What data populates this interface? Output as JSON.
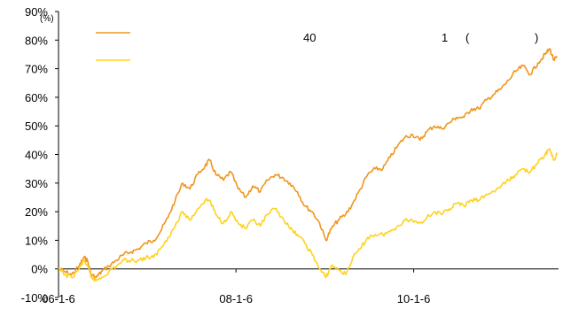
{
  "chart_data": {
    "type": "line",
    "ylim": [
      -10,
      90
    ],
    "y_unit": "(%)",
    "y_ticks": [
      "-10%",
      "0%",
      "10%",
      "20%",
      "30%",
      "40%",
      "50%",
      "60%",
      "70%",
      "80%",
      "90%"
    ],
    "x_ticks": [
      "06-1-6",
      "08-1-6",
      "10-1-6"
    ],
    "legend_fragments": [
      "40",
      "1",
      "(",
      ")"
    ],
    "grid": false,
    "legend_position": "top-left",
    "series": [
      {
        "color": "#F0961E",
        "points": [
          [
            "2006-01-06",
            0
          ],
          [
            "2006-02-01",
            -1
          ],
          [
            "2006-03-01",
            -2
          ],
          [
            "2006-04-01",
            1
          ],
          [
            "2006-04-20",
            4
          ],
          [
            "2006-05-05",
            3
          ],
          [
            "2006-05-20",
            -2
          ],
          [
            "2006-06-10",
            -3
          ],
          [
            "2006-07-01",
            -1
          ],
          [
            "2006-08-01",
            1
          ],
          [
            "2006-09-01",
            3
          ],
          [
            "2006-10-01",
            5
          ],
          [
            "2006-11-01",
            6
          ],
          [
            "2006-12-01",
            7
          ],
          [
            "2007-01-01",
            9
          ],
          [
            "2007-02-01",
            10
          ],
          [
            "2007-03-01",
            13
          ],
          [
            "2007-04-01",
            18
          ],
          [
            "2007-05-01",
            24
          ],
          [
            "2007-06-01",
            30
          ],
          [
            "2007-07-01",
            28
          ],
          [
            "2007-08-01",
            33
          ],
          [
            "2007-09-01",
            36
          ],
          [
            "2007-09-20",
            38
          ],
          [
            "2007-10-15",
            33
          ],
          [
            "2007-11-15",
            31
          ],
          [
            "2007-12-15",
            34
          ],
          [
            "2008-01-15",
            28
          ],
          [
            "2008-02-15",
            25
          ],
          [
            "2008-03-15",
            29
          ],
          [
            "2008-04-15",
            27
          ],
          [
            "2008-05-15",
            31
          ],
          [
            "2008-06-15",
            33
          ],
          [
            "2008-07-15",
            32
          ],
          [
            "2008-08-15",
            30
          ],
          [
            "2008-09-15",
            27
          ],
          [
            "2008-10-15",
            22
          ],
          [
            "2008-11-15",
            20
          ],
          [
            "2008-12-15",
            16
          ],
          [
            "2009-01-10",
            10
          ],
          [
            "2009-02-01",
            14
          ],
          [
            "2009-03-01",
            17
          ],
          [
            "2009-04-01",
            19
          ],
          [
            "2009-05-01",
            23
          ],
          [
            "2009-06-01",
            28
          ],
          [
            "2009-07-01",
            33
          ],
          [
            "2009-08-01",
            35
          ],
          [
            "2009-09-01",
            35
          ],
          [
            "2009-10-01",
            39
          ],
          [
            "2009-11-01",
            43
          ],
          [
            "2009-12-01",
            46
          ],
          [
            "2010-01-01",
            47
          ],
          [
            "2010-02-01",
            45
          ],
          [
            "2010-03-01",
            48
          ],
          [
            "2010-04-01",
            50
          ],
          [
            "2010-05-01",
            49
          ],
          [
            "2010-06-01",
            51
          ],
          [
            "2010-07-01",
            53
          ],
          [
            "2010-08-01",
            53
          ],
          [
            "2010-09-01",
            56
          ],
          [
            "2010-10-01",
            56
          ],
          [
            "2010-11-01",
            59
          ],
          [
            "2010-12-01",
            61
          ],
          [
            "2011-01-01",
            63
          ],
          [
            "2011-02-01",
            66
          ],
          [
            "2011-03-01",
            69
          ],
          [
            "2011-04-01",
            71
          ],
          [
            "2011-05-01",
            68
          ],
          [
            "2011-06-01",
            72
          ],
          [
            "2011-07-01",
            75
          ],
          [
            "2011-07-20",
            77
          ],
          [
            "2011-08-05",
            73
          ],
          [
            "2011-08-20",
            74
          ]
        ]
      },
      {
        "color": "#FFD21E",
        "points": [
          [
            "2006-01-06",
            0
          ],
          [
            "2006-02-01",
            -2
          ],
          [
            "2006-03-01",
            -3
          ],
          [
            "2006-04-01",
            0
          ],
          [
            "2006-04-20",
            3
          ],
          [
            "2006-05-05",
            1
          ],
          [
            "2006-05-20",
            -3
          ],
          [
            "2006-06-10",
            -4
          ],
          [
            "2006-07-01",
            -3
          ],
          [
            "2006-08-01",
            -1
          ],
          [
            "2006-09-01",
            1
          ],
          [
            "2006-10-01",
            3
          ],
          [
            "2006-11-01",
            3
          ],
          [
            "2006-12-01",
            3
          ],
          [
            "2007-01-01",
            4
          ],
          [
            "2007-02-01",
            4
          ],
          [
            "2007-03-01",
            7
          ],
          [
            "2007-04-01",
            11
          ],
          [
            "2007-05-01",
            15
          ],
          [
            "2007-06-01",
            20
          ],
          [
            "2007-07-01",
            17
          ],
          [
            "2007-08-01",
            21
          ],
          [
            "2007-09-01",
            24
          ],
          [
            "2007-09-20",
            24
          ],
          [
            "2007-10-15",
            19
          ],
          [
            "2007-11-15",
            16
          ],
          [
            "2007-12-15",
            20
          ],
          [
            "2008-01-15",
            16
          ],
          [
            "2008-02-15",
            14
          ],
          [
            "2008-03-15",
            17
          ],
          [
            "2008-04-15",
            15
          ],
          [
            "2008-05-15",
            19
          ],
          [
            "2008-06-15",
            21
          ],
          [
            "2008-07-15",
            18
          ],
          [
            "2008-08-15",
            14
          ],
          [
            "2008-09-15",
            12
          ],
          [
            "2008-10-15",
            9
          ],
          [
            "2008-11-15",
            5
          ],
          [
            "2008-12-15",
            0
          ],
          [
            "2009-01-10",
            -3
          ],
          [
            "2009-02-01",
            1
          ],
          [
            "2009-03-01",
            0
          ],
          [
            "2009-04-01",
            -2
          ],
          [
            "2009-05-01",
            4
          ],
          [
            "2009-06-01",
            7
          ],
          [
            "2009-07-01",
            11
          ],
          [
            "2009-08-01",
            12
          ],
          [
            "2009-09-01",
            12
          ],
          [
            "2009-10-01",
            13
          ],
          [
            "2009-11-01",
            15
          ],
          [
            "2009-12-01",
            17
          ],
          [
            "2010-01-01",
            17
          ],
          [
            "2010-02-01",
            16
          ],
          [
            "2010-03-01",
            18
          ],
          [
            "2010-04-01",
            20
          ],
          [
            "2010-05-01",
            19
          ],
          [
            "2010-06-01",
            21
          ],
          [
            "2010-07-01",
            23
          ],
          [
            "2010-08-01",
            22
          ],
          [
            "2010-09-01",
            24
          ],
          [
            "2010-10-01",
            24
          ],
          [
            "2010-11-01",
            26
          ],
          [
            "2010-12-01",
            27
          ],
          [
            "2011-01-01",
            29
          ],
          [
            "2011-02-01",
            31
          ],
          [
            "2011-03-01",
            33
          ],
          [
            "2011-04-01",
            35
          ],
          [
            "2011-05-01",
            34
          ],
          [
            "2011-06-01",
            37
          ],
          [
            "2011-07-01",
            40
          ],
          [
            "2011-07-20",
            42
          ],
          [
            "2011-08-05",
            38
          ],
          [
            "2011-08-20",
            40
          ]
        ]
      }
    ]
  }
}
